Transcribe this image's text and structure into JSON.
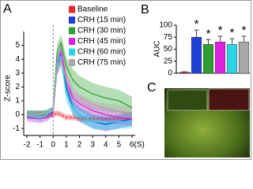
{
  "chart_data": [
    {
      "type": "line",
      "panel_label": "A",
      "ylabel": "Z-score",
      "x": [
        -2,
        -1,
        -0.5,
        0,
        0.3,
        0.6,
        1,
        1.5,
        2,
        3,
        4,
        5,
        6
      ],
      "series": [
        {
          "name": "Baseline",
          "color": "#e8262b",
          "values": [
            0,
            0,
            0,
            0,
            0.1,
            0,
            -0.2,
            -0.2,
            -0.3,
            -0.3,
            -0.3,
            -0.3,
            -0.3
          ],
          "errors": [
            0.2,
            0.2,
            0.2,
            0.2,
            0.2,
            0.2,
            0.2,
            0.2,
            0.2,
            0.2,
            0.2,
            0.2,
            0.2
          ]
        },
        {
          "name": "CRH (15 min)",
          "color": "#1f3fd6",
          "values": [
            0,
            0,
            0,
            0.2,
            3.5,
            4.3,
            2.0,
            0.5,
            0,
            -0.5,
            -0.7,
            -0.5,
            -0.3
          ],
          "errors": [
            0.3,
            0.3,
            0.3,
            0.3,
            0.6,
            0.6,
            0.6,
            0.5,
            0.5,
            0.5,
            0.5,
            0.5,
            0.5
          ]
        },
        {
          "name": "CRH (30 min)",
          "color": "#2ea02e",
          "values": [
            0,
            0,
            0,
            0.3,
            4.5,
            5.2,
            3.5,
            2.5,
            2,
            1.5,
            1.2,
            1,
            0.5
          ],
          "errors": [
            0.3,
            0.3,
            0.3,
            0.3,
            0.6,
            0.6,
            0.7,
            0.8,
            0.8,
            0.8,
            0.8,
            0.8,
            0.8
          ]
        },
        {
          "name": "CRH (45 min)",
          "color": "#e020e0",
          "values": [
            -0.2,
            -0.3,
            -0.2,
            0.2,
            3.5,
            4.5,
            2.5,
            1.2,
            0.8,
            0.3,
            0,
            -0.2,
            -0.3
          ],
          "errors": [
            0.3,
            0.3,
            0.3,
            0.3,
            0.6,
            0.6,
            0.6,
            0.5,
            0.5,
            0.5,
            0.5,
            0.5,
            0.5
          ]
        },
        {
          "name": "CRH (60 min)",
          "color": "#29d6e6",
          "values": [
            0,
            -0.2,
            0,
            0.3,
            3.8,
            4.2,
            1.5,
            0.5,
            0,
            -0.5,
            -0.6,
            -0.5,
            -0.5
          ],
          "errors": [
            0.3,
            0.3,
            0.3,
            0.3,
            0.6,
            0.6,
            0.6,
            0.5,
            0.5,
            0.5,
            0.5,
            0.5,
            0.5
          ]
        },
        {
          "name": "CRH (75 min)",
          "color": "#a9a9a9",
          "values": [
            0,
            0,
            0.1,
            0.3,
            3.5,
            4.0,
            2.5,
            1.5,
            1,
            0.5,
            0.3,
            0.2,
            0
          ],
          "errors": [
            0.3,
            0.3,
            0.3,
            0.3,
            0.6,
            0.6,
            0.6,
            0.5,
            0.5,
            0.5,
            0.5,
            0.5,
            0.5
          ]
        }
      ],
      "xlim": [
        -2,
        6
      ],
      "xticks": [
        -2,
        -1,
        0,
        1,
        2,
        3,
        4,
        5,
        {
          "value": 6,
          "label": "6(S)"
        }
      ],
      "ylim": [
        -1.5,
        6
      ],
      "yticks": [
        -1,
        0,
        1,
        2,
        3,
        4,
        5
      ]
    },
    {
      "type": "bar",
      "panel_label": "B",
      "ylabel": "AUC",
      "categories": [
        null,
        null,
        null,
        null,
        null,
        null
      ],
      "values": [
        2,
        75,
        60,
        65,
        60,
        65
      ],
      "errors": [
        1,
        15,
        10,
        12,
        12,
        12
      ],
      "colors": [
        "#e8262b",
        "#1f3fd6",
        "#2ea02e",
        "#e020e0",
        "#29d6e6",
        "#a9a9a9"
      ],
      "significance": [
        null,
        "*",
        "*",
        "*",
        "*",
        "*"
      ],
      "ylim": [
        0,
        100
      ],
      "yticks": [
        0,
        25,
        50,
        75,
        100
      ]
    }
  ],
  "image_panel": {
    "label": "C"
  }
}
